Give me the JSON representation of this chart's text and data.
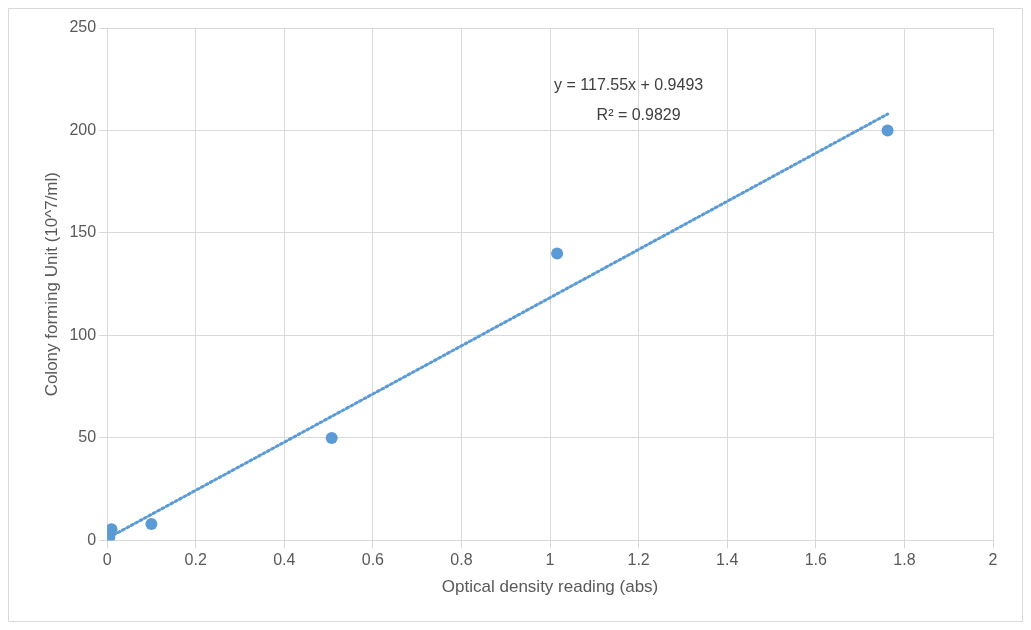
{
  "chart_data": {
    "type": "scatter",
    "xlabel": "Optical density reading (abs)",
    "ylabel": "Colony forming Unit (10^7/ml)",
    "x": [
      0.005,
      0.01,
      0.1,
      0.507,
      1.016,
      1.762
    ],
    "series": [
      {
        "color": "#5b9bd5",
        "marker": "circle",
        "values": [
          1.5,
          5.5,
          8,
          50,
          140,
          200
        ]
      },
      {
        "type": "line",
        "color": "#5b9bd5",
        "marker": "none",
        "line_style": "dotted",
        "x": [
          0.005,
          1.762
        ],
        "values": [
          1.5,
          208
        ]
      }
    ],
    "annotations": [
      "y = 117.55x + 0.9493",
      "R² = 0.9829"
    ],
    "xlim": [
      0,
      2
    ],
    "xticks": [
      0,
      0.2,
      0.4,
      0.6,
      0.8,
      1,
      1.2,
      1.4,
      1.6,
      1.8,
      2
    ],
    "ylim": [
      0,
      250
    ],
    "yticks": [
      0,
      50,
      100,
      150,
      200,
      250
    ],
    "grid": true,
    "legend": false
  }
}
